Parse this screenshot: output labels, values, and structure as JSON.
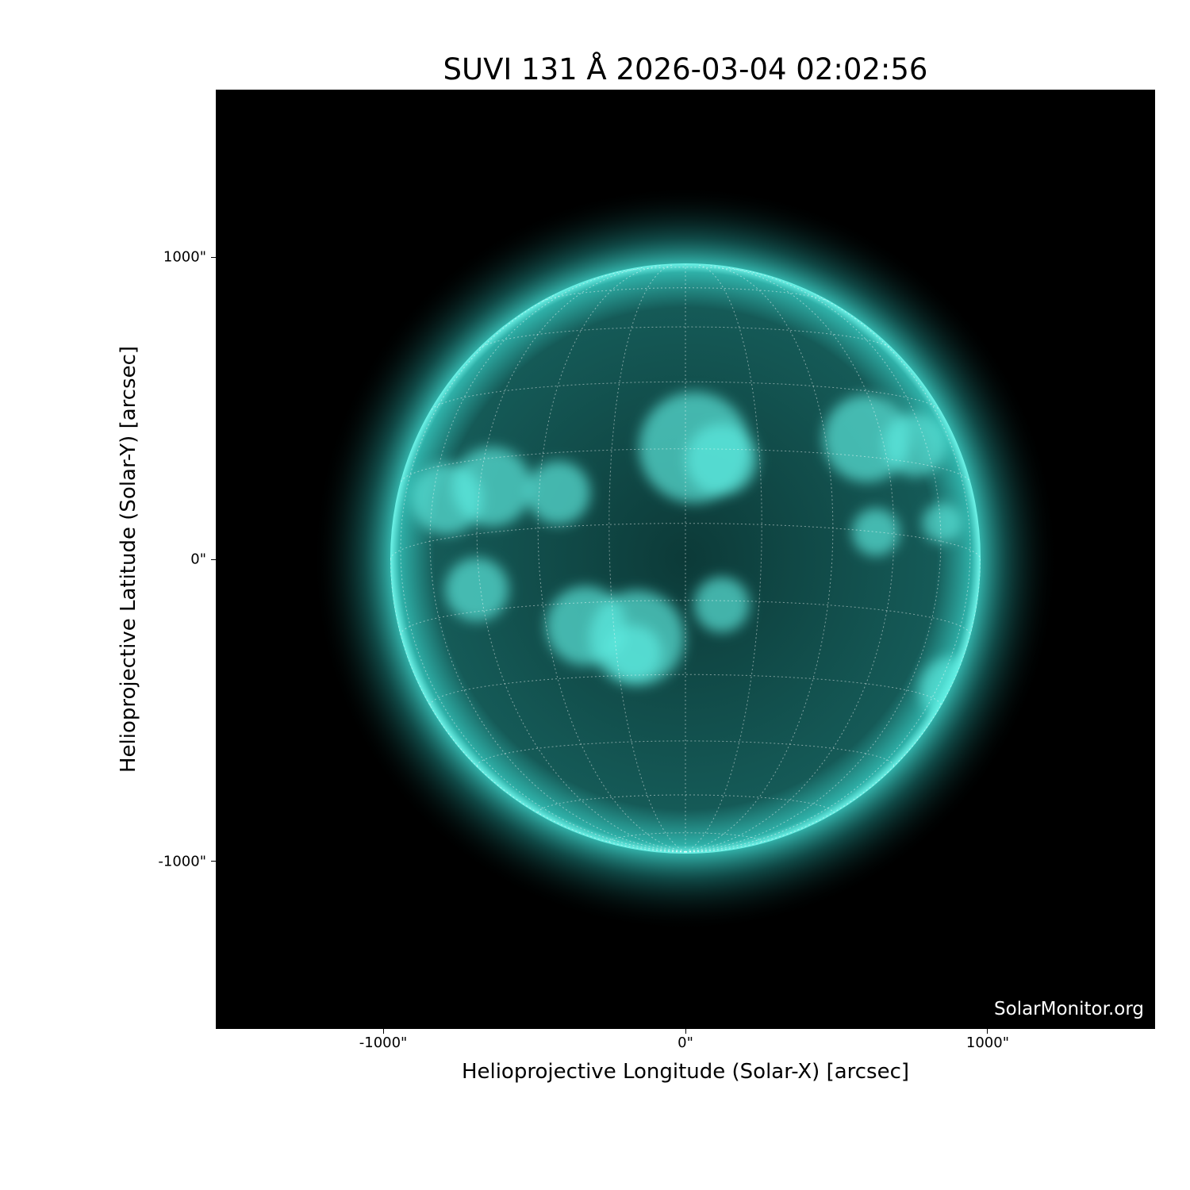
{
  "chart_data": {
    "type": "image",
    "title": "SUVI 131 Å 2026-03-04 02:02:56",
    "xlabel": "Helioprojective Longitude (Solar-X) [arcsec]",
    "ylabel": "Helioprojective Latitude (Solar-Y) [arcsec]",
    "xlim": [
      -1554,
      1554
    ],
    "ylim": [
      -1554,
      1554
    ],
    "xticks": [
      {
        "value": -1000,
        "label": "-1000\""
      },
      {
        "value": 0,
        "label": "0\""
      },
      {
        "value": 1000,
        "label": "1000\""
      }
    ],
    "yticks": [
      {
        "value": 1000,
        "label": "1000\""
      },
      {
        "value": 0,
        "label": "0\""
      },
      {
        "value": -1000,
        "label": "-1000\""
      }
    ],
    "solar_radius_arcsec": 976,
    "colormap": "black to cyan",
    "accent_color": "#40e0d0",
    "grid": "heliographic lat/lon, dotted white",
    "watermark": "SolarMonitor.org"
  }
}
